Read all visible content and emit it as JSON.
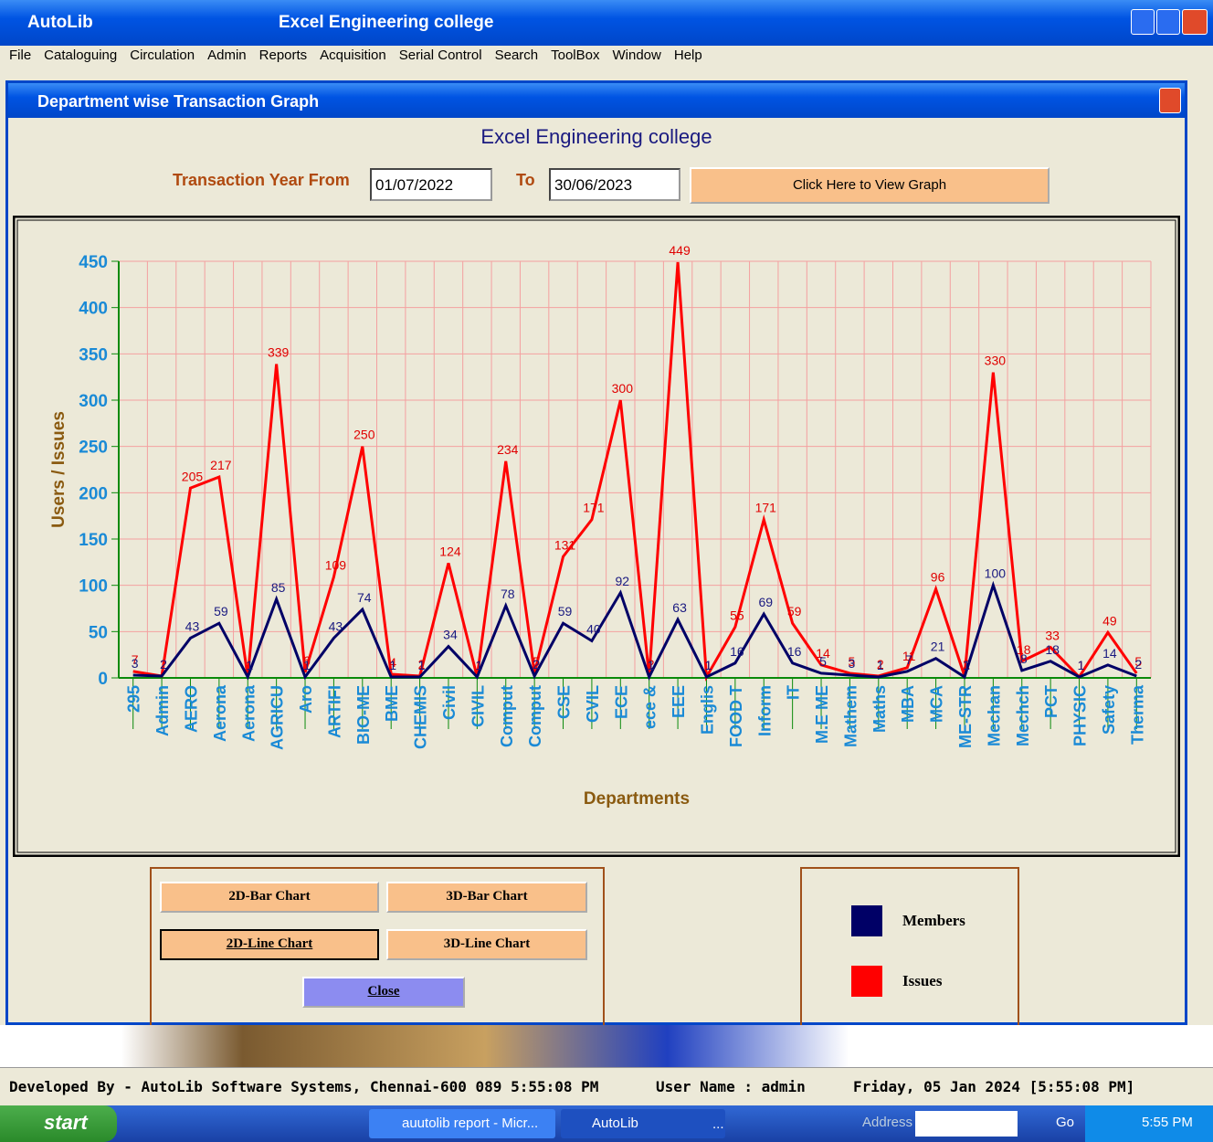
{
  "app": {
    "title": "AutoLib",
    "college": "Excel Engineering college"
  },
  "menu": [
    "File",
    "Cataloguing",
    "Circulation",
    "Admin",
    "Reports",
    "Acquisition",
    "Serial Control",
    "Search",
    "ToolBox",
    "Window",
    "Help"
  ],
  "window": {
    "title": "Department wise Transaction Graph",
    "heading": "Excel Engineering college",
    "from_label": "Transaction Year From",
    "from_date": "01/07/2022",
    "to_label": "To",
    "to_date": "30/06/2023",
    "view_button": "Click Here to View Graph"
  },
  "chart_data": {
    "type": "line",
    "xlabel": "Departments",
    "ylabel": "Users / Issues",
    "categories": [
      "295",
      "Admin",
      "AERO",
      "Aerona",
      "Aerona",
      "AGRICU",
      "Aro",
      "ARTIFI",
      "BIO-ME",
      "BME",
      "CHEMIS",
      "Civil",
      "CIVIL",
      "Comput",
      "Comput",
      "CSE",
      "CVIL",
      "ECE",
      "ece &",
      "EEE",
      "Englis",
      "FOOD T",
      "Inform",
      "IT",
      "M.E ME",
      "Mathem",
      "Maths",
      "MBA",
      "MCA",
      "ME-STR",
      "Mechan",
      "Mechch",
      "PCT",
      "PHYSIC",
      "Safety",
      "Therma"
    ],
    "series": [
      {
        "name": "Members",
        "color": "#000066",
        "values": [
          3,
          2,
          43,
          59,
          1,
          85,
          1,
          43,
          74,
          1,
          1,
          34,
          1,
          78,
          2,
          59,
          40,
          92,
          1,
          63,
          1,
          16,
          69,
          16,
          5,
          3,
          1,
          7,
          21,
          1,
          100,
          8,
          18,
          1,
          14,
          2
        ]
      },
      {
        "name": "Issues",
        "color": "#ff0000",
        "values": [
          7,
          2,
          205,
          217,
          1,
          339,
          6,
          109,
          250,
          4,
          2,
          124,
          1,
          234,
          5,
          131,
          171,
          300,
          2,
          449,
          1,
          55,
          171,
          59,
          14,
          5,
          2,
          11,
          96,
          2,
          330,
          18,
          33,
          1,
          49,
          5
        ]
      }
    ],
    "ylim": [
      0,
      450
    ],
    "yticks": [
      0,
      50,
      100,
      150,
      200,
      250,
      300,
      350,
      400,
      450
    ],
    "grid": true
  },
  "buttons": {
    "bar2d": "2D-Bar Chart",
    "bar3d": "3D-Bar Chart",
    "line2d": "2D-Line Chart",
    "line3d": "3D-Line Chart",
    "close": "Close"
  },
  "status": {
    "developer": "Developed By -  AutoLib Software Systems, Chennai-600 089  5:55:08 PM",
    "user": "User Name : admin",
    "date": "Friday, 05 Jan 2024 [5:55:08 PM]"
  },
  "taskbar": {
    "start": "start",
    "task1": "auutolib report - Micr...",
    "task2": "AutoLib",
    "more": "...",
    "address": "Address",
    "go": "Go",
    "clock": "5:55 PM"
  }
}
